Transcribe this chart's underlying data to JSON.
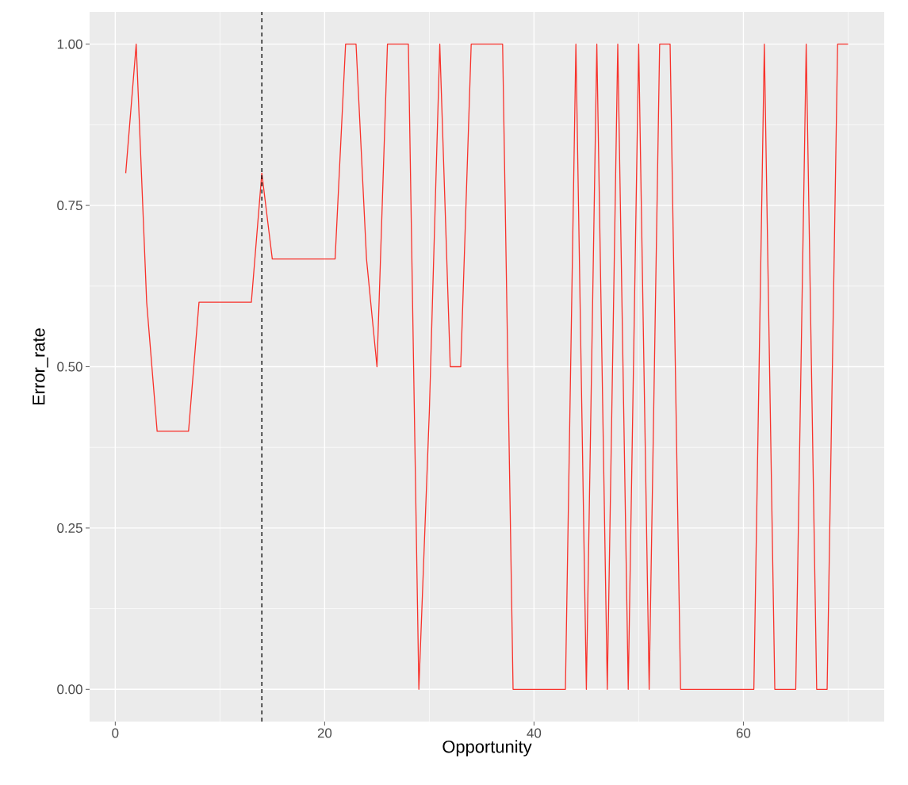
{
  "chart_data": {
    "type": "line",
    "xlabel": "Opportunity",
    "ylabel": "Error_rate",
    "x": [
      1,
      2,
      3,
      4,
      5,
      6,
      7,
      8,
      9,
      10,
      11,
      12,
      13,
      14,
      15,
      16,
      17,
      18,
      19,
      20,
      21,
      22,
      23,
      24,
      25,
      26,
      27,
      28,
      29,
      30,
      31,
      32,
      33,
      34,
      35,
      36,
      37,
      38,
      39,
      40,
      41,
      42,
      43,
      44,
      45,
      46,
      47,
      48,
      49,
      50,
      51,
      52,
      53,
      54,
      55,
      56,
      57,
      58,
      59,
      60,
      61,
      62,
      63,
      64,
      65,
      66,
      67,
      68,
      69,
      70
    ],
    "series": [
      {
        "color": "#f8312a",
        "values": [
          0.8,
          1,
          0.6,
          0.4,
          0.4,
          0.4,
          0.4,
          0.6,
          0.6,
          0.6,
          0.6,
          0.6,
          0.6,
          0.8,
          0.667,
          0.667,
          0.667,
          0.667,
          0.667,
          0.667,
          0.667,
          1,
          1,
          0.667,
          0.5,
          1,
          1,
          1,
          0,
          0.43,
          1,
          0.5,
          0.5,
          1,
          1,
          1,
          1,
          0,
          0,
          0,
          0,
          0,
          0,
          1,
          0,
          1,
          0,
          1,
          0,
          1,
          0,
          1,
          1,
          0,
          0,
          0,
          0,
          0,
          0,
          0,
          0,
          1,
          0,
          0,
          0,
          1,
          0,
          0,
          1,
          1
        ]
      }
    ],
    "xlim": [
      -2.45,
      73.45
    ],
    "ylim": [
      -0.05,
      1.05
    ],
    "xticks": [
      0,
      20,
      40,
      60
    ],
    "yticks": [
      {
        "value": 0,
        "label": "0.00"
      },
      {
        "value": 0.25,
        "label": "0.25"
      },
      {
        "value": 0.5,
        "label": "0.50"
      },
      {
        "value": 0.75,
        "label": "0.75"
      },
      {
        "value": 1,
        "label": "1.00"
      }
    ],
    "grid": true,
    "line_style": "solid",
    "ref_lines": [
      {
        "axis": "x",
        "value": 14,
        "color": "#000000",
        "line_style": "dashed"
      }
    ]
  }
}
